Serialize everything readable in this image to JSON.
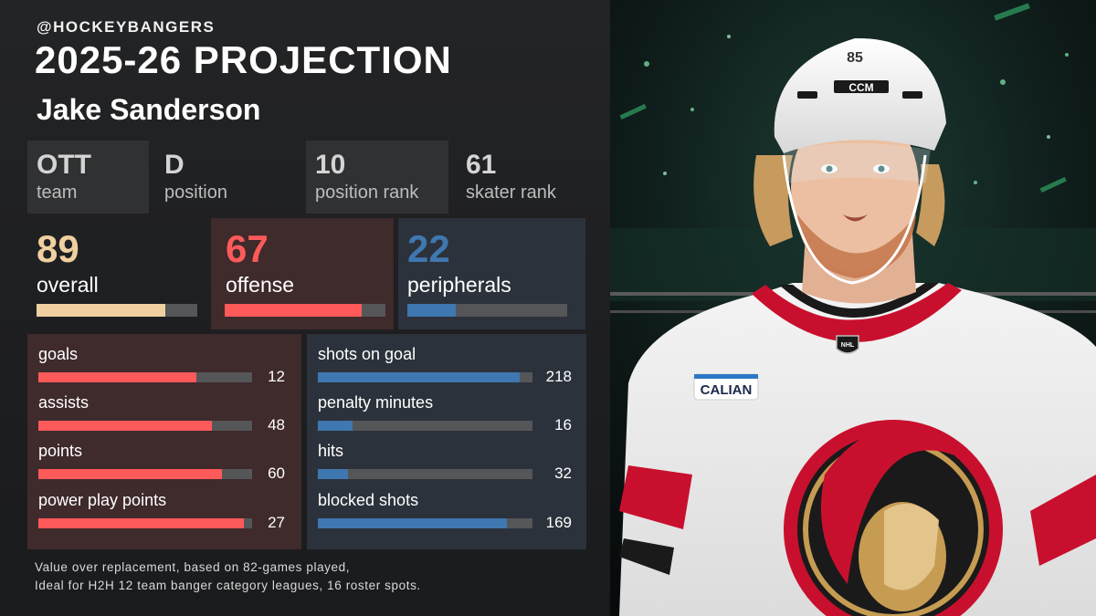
{
  "header": {
    "handle": "@HOCKEYBANGERS",
    "title": "2025-26 PROJECTION",
    "player_name": "Jake Sanderson"
  },
  "info": [
    {
      "value": "OTT",
      "label": "team"
    },
    {
      "value": "D",
      "label": "position"
    },
    {
      "value": "10",
      "label": "position rank"
    },
    {
      "value": "61",
      "label": "skater rank"
    }
  ],
  "scores": {
    "overall": {
      "value": "89",
      "label": "overall",
      "fill": 0.8,
      "color": "#f0cfa0"
    },
    "offense": {
      "value": "67",
      "label": "offense",
      "fill": 0.85,
      "color": "#ff5a5a"
    },
    "peripherals": {
      "value": "22",
      "label": "peripherals",
      "fill": 0.3,
      "color": "#3f77b0"
    }
  },
  "offense_stats": [
    {
      "name": "goals",
      "value": "12",
      "fill": 0.74
    },
    {
      "name": "assists",
      "value": "48",
      "fill": 0.81
    },
    {
      "name": "points",
      "value": "60",
      "fill": 0.86
    },
    {
      "name": "power play points",
      "value": "27",
      "fill": 0.96
    }
  ],
  "peripheral_stats": [
    {
      "name": "shots on goal",
      "value": "218",
      "fill": 0.94
    },
    {
      "name": "penalty minutes",
      "value": "16",
      "fill": 0.16
    },
    {
      "name": "hits",
      "value": "32",
      "fill": 0.14
    },
    {
      "name": "blocked shots",
      "value": "169",
      "fill": 0.88
    }
  ],
  "footnote": {
    "line1": "Value over replacement, based on 82-games played,",
    "line2": "Ideal for H2H 12 team banger category leagues, 16 roster spots."
  },
  "photo": {
    "helmet_number": "85",
    "helmet_brand": "CCM",
    "patch_text": "CALIAN",
    "shield_text": "NHL"
  },
  "colors": {
    "offense_red": "#ff5a5a",
    "peripheral_blue": "#3f77b0",
    "overall_tan": "#f0cfa0",
    "offense_panel": "#3f2a2c",
    "peripheral_panel": "#2c323b"
  }
}
